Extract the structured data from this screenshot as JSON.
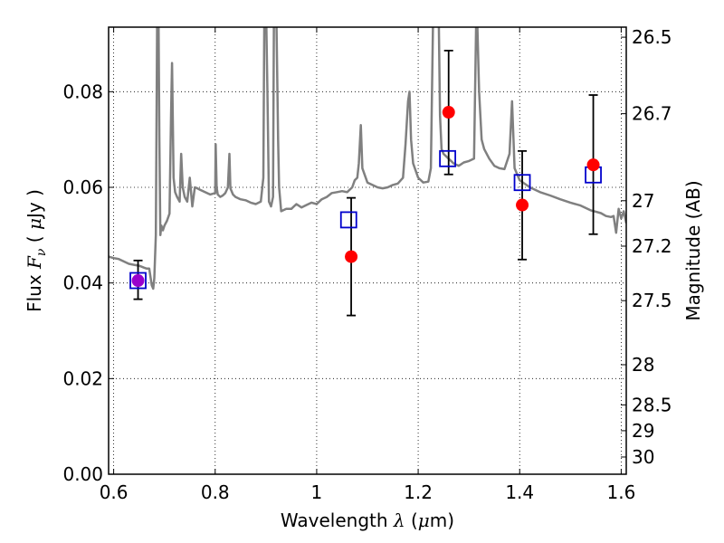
{
  "chart_data": {
    "type": "scatter",
    "xlabel": {
      "prefix": "Wavelength",
      "symbol": "λ",
      "unit_open": "(",
      "unit_mu": "μ",
      "unit_rest": "m)"
    },
    "ylabel": {
      "prefix": "Flux",
      "symbol": "F",
      "subscript": "ν",
      "unit_open": "(",
      "unit_mu": "μ",
      "unit_rest": "Jy )"
    },
    "y2label": "Magnitude (AB)",
    "xlim": [
      0.59,
      1.61
    ],
    "ylim": [
      0.0,
      0.0935
    ],
    "grid": true,
    "xticks": [
      {
        "value": 0.6,
        "label": "0.6"
      },
      {
        "value": 0.8,
        "label": "0.8"
      },
      {
        "value": 1.0,
        "label": "1"
      },
      {
        "value": 1.2,
        "label": "1.2"
      },
      {
        "value": 1.4,
        "label": "1.4"
      },
      {
        "value": 1.6,
        "label": "1.6"
      }
    ],
    "yticks": [
      {
        "value": 0.0,
        "label": "0.00"
      },
      {
        "value": 0.02,
        "label": "0.02"
      },
      {
        "value": 0.04,
        "label": "0.04"
      },
      {
        "value": 0.06,
        "label": "0.06"
      },
      {
        "value": 0.08,
        "label": "0.08"
      }
    ],
    "y2ticks": [
      {
        "label": "26.5",
        "flux": 0.0914
      },
      {
        "label": "26.7",
        "flux": 0.0754
      },
      {
        "label": "27",
        "flux": 0.0572
      },
      {
        "label": "27.2",
        "flux": 0.0477
      },
      {
        "label": "27.5",
        "flux": 0.0363
      },
      {
        "label": "28",
        "flux": 0.0229
      },
      {
        "label": "28.5",
        "flux": 0.0145
      },
      {
        "label": "29",
        "flux": 0.0091
      },
      {
        "label": "30",
        "flux": 0.0036
      }
    ],
    "series": [
      {
        "kind": "model_spectrum",
        "color": "#808080",
        "x": [
          0.59,
          0.6,
          0.61,
          0.62,
          0.63,
          0.64,
          0.65,
          0.655,
          0.66,
          0.665,
          0.67,
          0.675,
          0.678,
          0.68,
          0.683,
          0.686,
          0.688,
          0.69,
          0.692,
          0.694,
          0.697,
          0.7,
          0.705,
          0.71,
          0.713,
          0.715,
          0.718,
          0.721,
          0.725,
          0.73,
          0.733,
          0.736,
          0.74,
          0.745,
          0.75,
          0.755,
          0.76,
          0.765,
          0.77,
          0.78,
          0.79,
          0.8,
          0.801,
          0.803,
          0.805,
          0.81,
          0.815,
          0.82,
          0.825,
          0.828,
          0.83,
          0.835,
          0.84,
          0.85,
          0.86,
          0.87,
          0.88,
          0.89,
          0.895,
          0.897,
          0.9,
          0.903,
          0.906,
          0.91,
          0.914,
          0.916,
          0.92,
          0.924,
          0.926,
          0.93,
          0.94,
          0.95,
          0.96,
          0.97,
          0.98,
          0.99,
          1.0,
          1.01,
          1.02,
          1.03,
          1.04,
          1.05,
          1.06,
          1.07,
          1.075,
          1.08,
          1.083,
          1.087,
          1.09,
          1.1,
          1.11,
          1.12,
          1.13,
          1.14,
          1.15,
          1.16,
          1.17,
          1.175,
          1.18,
          1.183,
          1.186,
          1.19,
          1.2,
          1.21,
          1.22,
          1.225,
          1.23,
          1.24,
          1.243,
          1.246,
          1.25,
          1.26,
          1.27,
          1.28,
          1.29,
          1.3,
          1.31,
          1.315,
          1.32,
          1.325,
          1.33,
          1.34,
          1.35,
          1.36,
          1.37,
          1.38,
          1.385,
          1.39,
          1.4,
          1.42,
          1.44,
          1.46,
          1.48,
          1.5,
          1.52,
          1.54,
          1.55,
          1.56,
          1.57,
          1.58,
          1.585,
          1.59,
          1.595,
          1.6,
          1.605,
          1.61
        ],
        "y": [
          0.0455,
          0.0452,
          0.045,
          0.0445,
          0.044,
          0.0438,
          0.0436,
          0.0434,
          0.0432,
          0.043,
          0.043,
          0.0395,
          0.0388,
          0.041,
          0.05,
          0.1,
          0.1,
          0.07,
          0.05,
          0.052,
          0.051,
          0.052,
          0.053,
          0.0545,
          0.075,
          0.086,
          0.062,
          0.059,
          0.058,
          0.057,
          0.067,
          0.06,
          0.058,
          0.057,
          0.062,
          0.056,
          0.06,
          0.0598,
          0.0595,
          0.059,
          0.0585,
          0.0588,
          0.069,
          0.06,
          0.0585,
          0.058,
          0.0583,
          0.0588,
          0.06,
          0.067,
          0.0598,
          0.0585,
          0.058,
          0.0575,
          0.0573,
          0.0568,
          0.0565,
          0.057,
          0.062,
          0.1,
          0.1,
          0.08,
          0.057,
          0.056,
          0.058,
          0.1,
          0.1,
          0.07,
          0.06,
          0.055,
          0.0555,
          0.0555,
          0.0565,
          0.0558,
          0.0563,
          0.0568,
          0.0565,
          0.0575,
          0.058,
          0.0588,
          0.059,
          0.0592,
          0.059,
          0.06,
          0.0615,
          0.062,
          0.065,
          0.073,
          0.064,
          0.061,
          0.0605,
          0.06,
          0.0598,
          0.06,
          0.0605,
          0.0608,
          0.062,
          0.069,
          0.078,
          0.08,
          0.07,
          0.065,
          0.062,
          0.061,
          0.0612,
          0.064,
          0.1,
          0.1,
          0.075,
          0.068,
          0.067,
          0.066,
          0.065,
          0.0645,
          0.0652,
          0.0655,
          0.066,
          0.1,
          0.08,
          0.07,
          0.068,
          0.066,
          0.0645,
          0.064,
          0.0638,
          0.067,
          0.078,
          0.064,
          0.0615,
          0.06,
          0.059,
          0.0583,
          0.0575,
          0.0568,
          0.0562,
          0.0552,
          0.0549,
          0.0546,
          0.054,
          0.0538,
          0.054,
          0.0505,
          0.0555,
          0.0535,
          0.055,
          0.0525
        ]
      },
      {
        "kind": "model_photometry",
        "marker": "open-square",
        "color": "#0000cc",
        "x": [
          0.648,
          1.063,
          1.258,
          1.405,
          1.545
        ],
        "y": [
          0.0405,
          0.0532,
          0.066,
          0.061,
          0.0626
        ]
      },
      {
        "kind": "observed_photometry",
        "marker": "filled-circle",
        "color": "#ff0000",
        "x": [
          0.648,
          1.068,
          1.26,
          1.405,
          1.545
        ],
        "y": [
          0.0405,
          0.0455,
          0.0757,
          0.0563,
          0.0647
        ],
        "yerr_low": [
          0.0366,
          0.0332,
          0.0627,
          0.0449,
          0.0502
        ],
        "yerr_high": [
          0.0447,
          0.0578,
          0.0886,
          0.0676,
          0.0793
        ]
      }
    ],
    "overlap_color": "#9900cc"
  }
}
